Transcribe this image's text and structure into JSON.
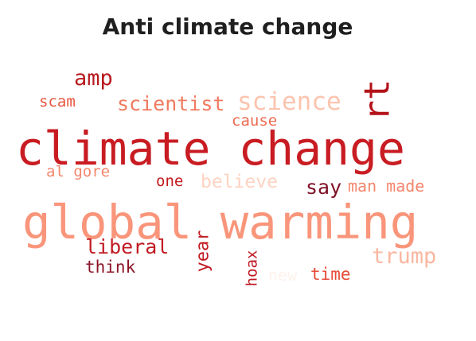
{
  "title": "Anti climate change",
  "words": [
    {
      "text": "climate change",
      "color": "#c81c22"
    },
    {
      "text": "global warming",
      "color": "#f9957a"
    },
    {
      "text": "rt",
      "color": "#b3121a"
    },
    {
      "text": "amp",
      "color": "#b81a1e"
    },
    {
      "text": "science",
      "color": "#fcc4ae"
    },
    {
      "text": "scientist",
      "color": "#f07a5e"
    },
    {
      "text": "scam",
      "color": "#e8563f"
    },
    {
      "text": "cause",
      "color": "#ee6a50"
    },
    {
      "text": "al gore",
      "color": "#f4866c"
    },
    {
      "text": "one",
      "color": "#c4191f"
    },
    {
      "text": "believe",
      "color": "#fdd3c1"
    },
    {
      "text": "say",
      "color": "#7d1226"
    },
    {
      "text": "man made",
      "color": "#f4866c"
    },
    {
      "text": "liberal",
      "color": "#c11b22"
    },
    {
      "text": "year",
      "color": "#c11b22"
    },
    {
      "text": "hoax",
      "color": "#c01822"
    },
    {
      "text": "trump",
      "color": "#fbb7a0"
    },
    {
      "text": "think",
      "color": "#8c1426"
    },
    {
      "text": "new",
      "color": "#fef2ec"
    },
    {
      "text": "time",
      "color": "#e74b35"
    }
  ]
}
